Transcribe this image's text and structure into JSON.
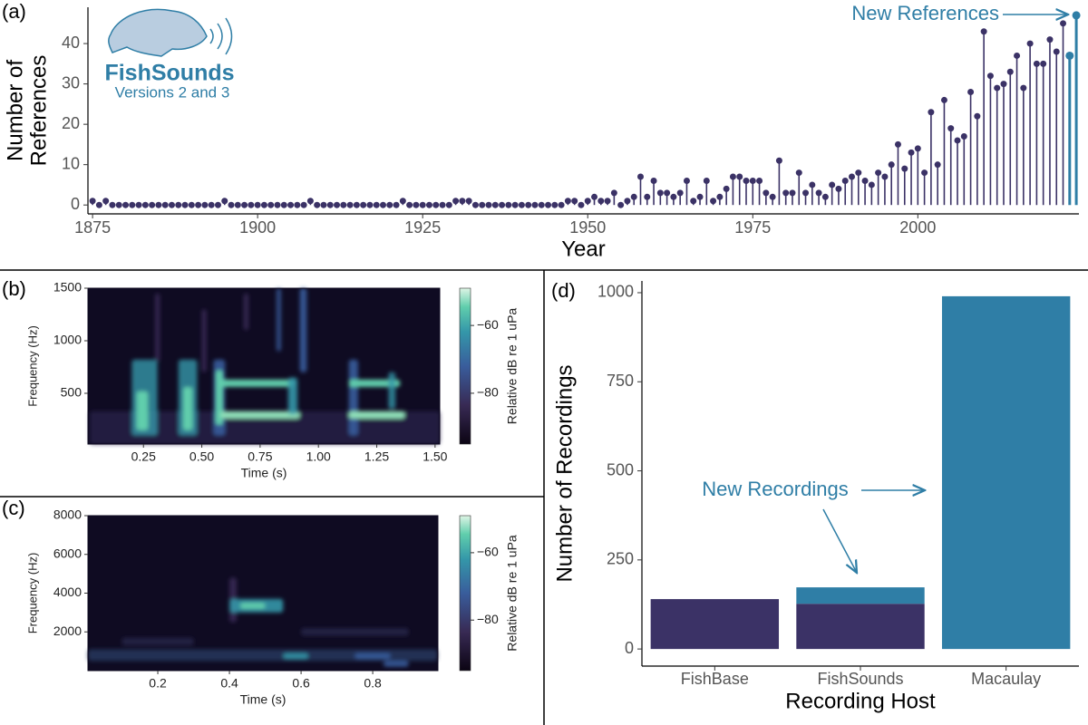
{
  "chart_data": [
    {
      "type": "lollipop",
      "panel_label": "(a)",
      "xlabel": "Year",
      "ylabel": [
        "Number of",
        "References"
      ],
      "x": [
        1875,
        1876,
        1877,
        1878,
        1879,
        1880,
        1881,
        1882,
        1883,
        1884,
        1885,
        1886,
        1887,
        1888,
        1889,
        1890,
        1891,
        1892,
        1893,
        1894,
        1895,
        1896,
        1897,
        1898,
        1899,
        1900,
        1901,
        1902,
        1903,
        1904,
        1905,
        1906,
        1907,
        1908,
        1909,
        1910,
        1911,
        1912,
        1913,
        1914,
        1915,
        1916,
        1917,
        1918,
        1919,
        1920,
        1921,
        1922,
        1923,
        1924,
        1925,
        1926,
        1927,
        1928,
        1929,
        1930,
        1931,
        1932,
        1933,
        1934,
        1935,
        1936,
        1937,
        1938,
        1939,
        1940,
        1941,
        1942,
        1943,
        1944,
        1945,
        1946,
        1947,
        1948,
        1949,
        1950,
        1951,
        1952,
        1953,
        1954,
        1955,
        1956,
        1957,
        1958,
        1959,
        1960,
        1961,
        1962,
        1963,
        1964,
        1965,
        1966,
        1967,
        1968,
        1969,
        1970,
        1971,
        1972,
        1973,
        1974,
        1975,
        1976,
        1977,
        1978,
        1979,
        1980,
        1981,
        1982,
        1983,
        1984,
        1985,
        1986,
        1987,
        1988,
        1989,
        1990,
        1991,
        1992,
        1993,
        1994,
        1995,
        1996,
        1997,
        1998,
        1999,
        2000,
        2001,
        2002,
        2003,
        2004,
        2005,
        2006,
        2007,
        2008,
        2009,
        2010,
        2011,
        2012,
        2013,
        2014,
        2015,
        2016,
        2017,
        2018,
        2019,
        2020,
        2021,
        2022,
        2023,
        2024
      ],
      "series": [
        {
          "color": "#3b3266",
          "values": [
            1,
            0,
            1,
            0,
            0,
            0,
            0,
            0,
            0,
            0,
            0,
            0,
            0,
            0,
            0,
            0,
            0,
            0,
            0,
            0,
            1,
            0,
            0,
            0,
            0,
            0,
            0,
            0,
            0,
            0,
            0,
            0,
            0,
            1,
            0,
            0,
            0,
            0,
            0,
            0,
            0,
            0,
            0,
            0,
            0,
            0,
            0,
            1,
            0,
            0,
            0,
            0,
            0,
            0,
            0,
            1,
            1,
            1,
            0,
            0,
            0,
            0,
            0,
            0,
            0,
            0,
            0,
            0,
            0,
            0,
            0,
            0,
            1,
            1,
            0,
            1,
            2,
            1,
            1,
            3,
            0,
            1,
            2,
            7,
            2,
            6,
            3,
            3,
            2,
            3,
            6,
            1,
            2,
            6,
            1,
            2,
            4,
            7,
            7,
            6,
            6,
            6,
            3,
            2,
            11,
            3,
            3,
            8,
            3,
            5,
            3,
            2,
            5,
            4,
            6,
            7,
            8,
            6,
            5,
            8,
            7,
            10,
            15,
            9,
            13,
            14,
            8,
            23,
            10,
            26,
            19,
            16,
            17,
            28,
            22,
            43,
            32,
            29,
            30,
            33,
            37,
            29,
            40,
            35,
            35,
            41,
            38,
            45,
            null,
            null
          ]
        },
        {
          "color": "#2f7ea6",
          "values": [
            null,
            null,
            null,
            null,
            null,
            null,
            null,
            null,
            null,
            null,
            null,
            null,
            null,
            null,
            null,
            null,
            null,
            null,
            null,
            null,
            null,
            null,
            null,
            null,
            null,
            null,
            null,
            null,
            null,
            null,
            null,
            null,
            null,
            null,
            null,
            null,
            null,
            null,
            null,
            null,
            null,
            null,
            null,
            null,
            null,
            null,
            null,
            null,
            null,
            null,
            null,
            null,
            null,
            null,
            null,
            null,
            null,
            null,
            null,
            null,
            null,
            null,
            null,
            null,
            null,
            null,
            null,
            null,
            null,
            null,
            null,
            null,
            null,
            null,
            null,
            null,
            null,
            null,
            null,
            null,
            null,
            null,
            null,
            null,
            null,
            null,
            null,
            null,
            null,
            null,
            null,
            null,
            null,
            null,
            null,
            null,
            null,
            null,
            null,
            null,
            null,
            null,
            null,
            null,
            null,
            null,
            null,
            null,
            null,
            null,
            null,
            null,
            null,
            null,
            null,
            null,
            null,
            null,
            null,
            null,
            null,
            null,
            null,
            null,
            null,
            null,
            null,
            null,
            null,
            null,
            null,
            null,
            null,
            null,
            null,
            null,
            null,
            null,
            null,
            null,
            null,
            null,
            null,
            null,
            null,
            null,
            null,
            null,
            37,
            47
          ]
        }
      ],
      "xlim": [
        1874.3,
        2024.4
      ],
      "xticks": [
        1875,
        1900,
        1925,
        1950,
        1975,
        2000
      ],
      "ylim": [
        -2.2,
        49
      ],
      "yticks": [
        0,
        10,
        20,
        30,
        40
      ],
      "annotation": "New References",
      "logo_title": "FishSounds",
      "logo_subtitle": "Versions 2 and 3"
    },
    {
      "type": "spectrogram",
      "panel_label": "(b)",
      "xlabel": "Time (s)",
      "ylabel": "Frequency (Hz)",
      "xlim": [
        0.012,
        1.52
      ],
      "xticks": [
        {
          "value": 0.25,
          "label": "0.25"
        },
        {
          "value": 0.5,
          "label": "0.50"
        },
        {
          "value": 0.75,
          "label": "0.75"
        },
        {
          "value": 1,
          "label": "1.00"
        },
        {
          "value": 1.25,
          "label": "1.25"
        },
        {
          "value": 1.5,
          "label": "1.50"
        }
      ],
      "ylim": [
        17,
        1500
      ],
      "yticks": [
        500,
        1000,
        1500
      ],
      "colorbar_label": "Relative dB re 1 uPa",
      "clim": [
        -95,
        -49
      ],
      "cticks": [
        {
          "value": -80,
          "label": "−80"
        },
        {
          "value": -60,
          "label": "−60"
        }
      ]
    },
    {
      "type": "spectrogram",
      "panel_label": "(c)",
      "xlabel": "Time (s)",
      "ylabel": "Frequency (Hz)",
      "xlim": [
        0.005,
        0.982
      ],
      "xticks": [
        0.2,
        0.4,
        0.6,
        0.8
      ],
      "ylim": [
        0,
        8000
      ],
      "yticks": [
        2000,
        4000,
        6000,
        8000
      ],
      "colorbar_label": "Relative dB re 1 uPa",
      "clim": [
        -95,
        -49
      ],
      "cticks": [
        {
          "value": -80,
          "label": "−80"
        },
        {
          "value": -60,
          "label": "−60"
        }
      ]
    },
    {
      "type": "stacked_bar",
      "panel_label": "(d)",
      "xlabel": "Recording Host",
      "ylabel": "Number of Recordings",
      "categories": [
        "FishBase",
        "FishSounds",
        "Macaulay"
      ],
      "series": [
        {
          "color": "#3b3266",
          "values": [
            140,
            127,
            null
          ]
        },
        {
          "color": "#2f7ea6",
          "values": [
            null,
            46,
            990
          ]
        }
      ],
      "ylim": [
        -48,
        1033
      ],
      "yticks": [
        0,
        250,
        500,
        750,
        1000
      ],
      "annotation": "New Recordings"
    }
  ]
}
